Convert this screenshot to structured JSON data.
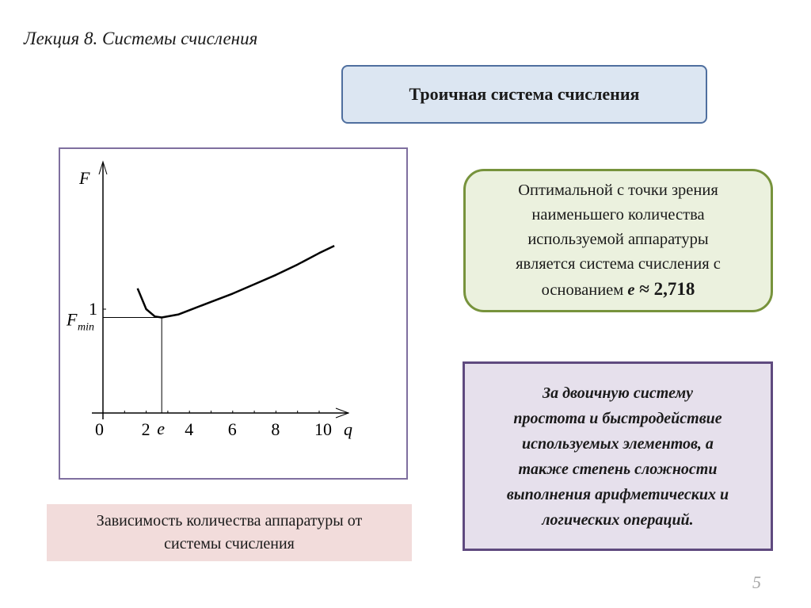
{
  "slide_title": "Лекция 8. Системы счисления",
  "topic": "Троичная система счисления",
  "optimal_box": {
    "lines": [
      "Оптимальной с точки зрения",
      "наименьшего количества",
      "используемой аппаратуры",
      "является система счисления с"
    ],
    "last_prefix": "основанием ",
    "last_e": "e",
    "last_value": " ≈ 2,718"
  },
  "binary_box": {
    "lines": [
      "За двоичную систему",
      "простота и быстродействие",
      "используемых элементов, а",
      "также степень сложности",
      "выполнения арифметических и",
      "логических операций."
    ]
  },
  "caption": {
    "lines": [
      "Зависимость количества аппаратуры от",
      "системы счисления"
    ]
  },
  "page_number": "5",
  "colors": {
    "topic_fill": "#dce6f2",
    "topic_border": "#4f6f9f",
    "green_fill": "#ebf1de",
    "green_border": "#77933c",
    "purple_fill": "#e6e0ec",
    "purple_border": "#5f4a7f",
    "caption_fill": "#f2dcdb"
  },
  "chart_data": {
    "type": "line",
    "xlabel": "q",
    "ylabel": "F",
    "x_ticks": [
      "0",
      "2",
      "4",
      "6",
      "8",
      "10"
    ],
    "x_tick_values": [
      0,
      2,
      4,
      6,
      8,
      10
    ],
    "e_label": "e",
    "e_value": 2.718,
    "y_tick_label": "1",
    "fmin_label": "F",
    "fmin_sub": "min",
    "fmin_value": 0.92,
    "xlim": [
      0,
      11
    ],
    "ylim": [
      0,
      2.4
    ],
    "points": [
      [
        1.6,
        1.2
      ],
      [
        2.0,
        1.0
      ],
      [
        2.4,
        0.93
      ],
      [
        2.718,
        0.92
      ],
      [
        3.5,
        0.95
      ],
      [
        4,
        0.99
      ],
      [
        5,
        1.07
      ],
      [
        6,
        1.15
      ],
      [
        7,
        1.24
      ],
      [
        8,
        1.33
      ],
      [
        9,
        1.43
      ],
      [
        10,
        1.54
      ],
      [
        10.7,
        1.61
      ]
    ]
  }
}
